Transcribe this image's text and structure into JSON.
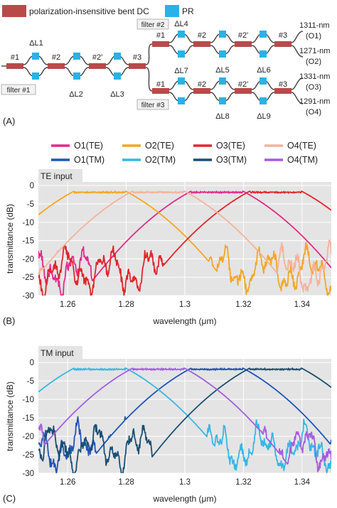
{
  "legend_top": {
    "dc_label": "polarization-insensitive bent DC",
    "pr_label": "PR",
    "dc_color": "#b84a4a",
    "pr_color": "#29b2e8"
  },
  "schematic": {
    "stage1": [
      "#1",
      "#2",
      "#2'",
      "#3"
    ],
    "stage2": [
      "#1",
      "#2",
      "#2'",
      "#3"
    ],
    "delays_stage1": [
      "ΔL1",
      "ΔL2",
      "ΔL3"
    ],
    "delays_upper": [
      "ΔL4",
      "ΔL5",
      "ΔL6"
    ],
    "delays_lower": [
      "ΔL7",
      "ΔL8",
      "ΔL9"
    ],
    "filter1": "filter #1",
    "filter2": "filter #2",
    "filter3": "filter #3",
    "outputs": [
      {
        "wl": "1311-nm",
        "port": "(O1)"
      },
      {
        "wl": "1271-nm",
        "port": "(O2)"
      },
      {
        "wl": "1331-nm",
        "port": "(O3)"
      },
      {
        "wl": "1291-nm",
        "port": "(O4)"
      }
    ]
  },
  "panel_labels": [
    "(A)",
    "(B)",
    "(C)"
  ],
  "series_legend": [
    {
      "name": "O1(TE)",
      "color": "#e5298a"
    },
    {
      "name": "O2(TE)",
      "color": "#f5a623"
    },
    {
      "name": "O3(TE)",
      "color": "#e0262b"
    },
    {
      "name": "O4(TE)",
      "color": "#f6b19a"
    },
    {
      "name": "O1(TM)",
      "color": "#1f55b7"
    },
    {
      "name": "O2(TM)",
      "color": "#35b8e6"
    },
    {
      "name": "O3(TM)",
      "color": "#1b4f72"
    },
    {
      "name": "O4(TM)",
      "color": "#a35de0"
    }
  ],
  "chart_data": [
    {
      "type": "line",
      "title": "TE input",
      "xlabel": "wavelength (μm)",
      "ylabel": "transmittance (dB)",
      "xlim": [
        1.25,
        1.35
      ],
      "ylim": [
        -30,
        1
      ],
      "xticks": [
        "1.26",
        "1.28",
        "1.3",
        "1.32",
        "1.34"
      ],
      "yticks": [
        "0",
        "-5",
        "-10",
        "-15",
        "-20",
        "-25",
        "-30"
      ],
      "grid": true,
      "series": [
        {
          "name": "O1(TE)",
          "passband_center_um": 1.311,
          "passband_width_um": 0.0175,
          "peak_db": -1.5
        },
        {
          "name": "O2(TE)",
          "passband_center_um": 1.271,
          "passband_width_um": 0.0175,
          "peak_db": -1.5
        },
        {
          "name": "O3(TE)",
          "passband_center_um": 1.331,
          "passband_width_um": 0.0175,
          "peak_db": -1.5
        },
        {
          "name": "O4(TE)",
          "passband_center_um": 1.291,
          "passband_width_um": 0.0175,
          "peak_db": -1.5
        }
      ]
    },
    {
      "type": "line",
      "title": "TM input",
      "xlabel": "wavelength (μm)",
      "ylabel": "transmittance (dB)",
      "xlim": [
        1.25,
        1.35
      ],
      "ylim": [
        -30,
        1
      ],
      "xticks": [
        "1.26",
        "1.28",
        "1.3",
        "1.32",
        "1.34"
      ],
      "yticks": [
        "0",
        "-5",
        "-10",
        "-15",
        "-20",
        "-25",
        "-30"
      ],
      "grid": true,
      "series": [
        {
          "name": "O1(TM)",
          "passband_center_um": 1.311,
          "passband_width_um": 0.0175,
          "peak_db": -1.5
        },
        {
          "name": "O2(TM)",
          "passband_center_um": 1.271,
          "passband_width_um": 0.0175,
          "peak_db": -1.5
        },
        {
          "name": "O3(TM)",
          "passband_center_um": 1.331,
          "passband_width_um": 0.0175,
          "peak_db": -1.5
        },
        {
          "name": "O4(TM)",
          "passband_center_um": 1.291,
          "passband_width_um": 0.0175,
          "peak_db": -1.5
        }
      ]
    }
  ]
}
